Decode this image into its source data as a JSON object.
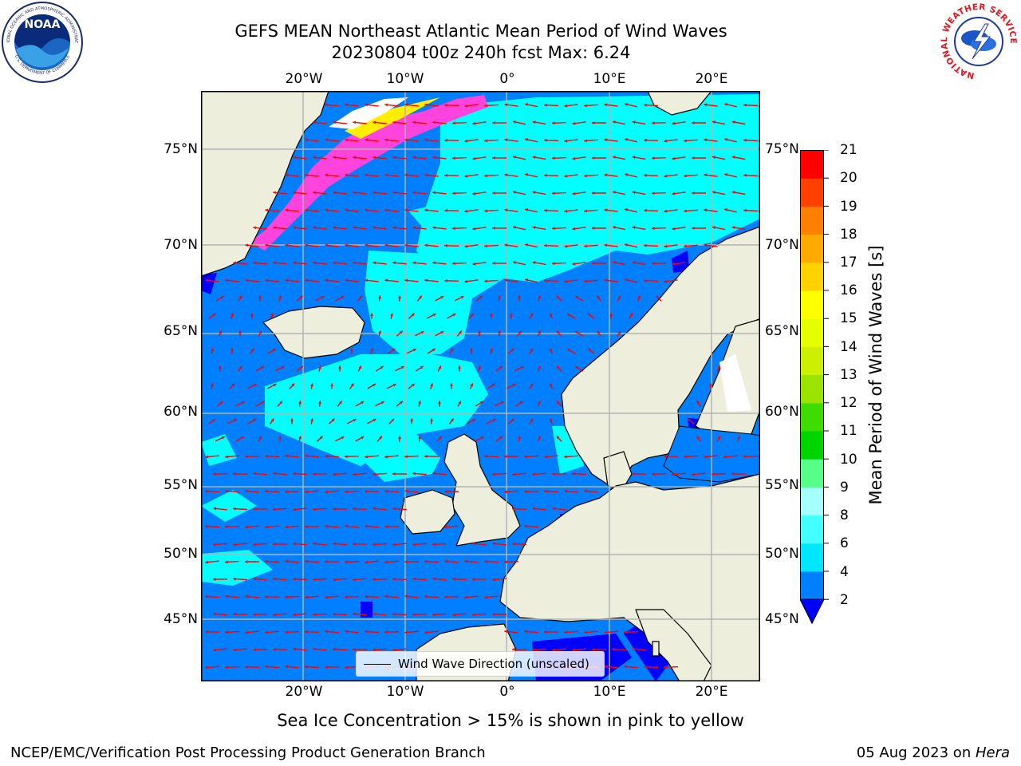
{
  "title": {
    "line1": "GEFS MEAN Northeast Atlantic Mean Period of Wind Waves",
    "line2": "20230804 t00z 240h fcst   Max: 6.24"
  },
  "axes": {
    "lon_labels": [
      "20°W",
      "10°W",
      "0°",
      "10°E",
      "20°E"
    ],
    "lat_labels": [
      "75°N",
      "70°N",
      "65°N",
      "60°N",
      "55°N",
      "50°N",
      "45°N"
    ]
  },
  "colorbar": {
    "title": "Mean Period of Wind Waves [s]",
    "ticks": [
      "2",
      "4",
      "6",
      "8",
      "9",
      "10",
      "11",
      "12",
      "13",
      "14",
      "15",
      "16",
      "17",
      "18",
      "19",
      "20",
      "21"
    ],
    "colors": [
      "#0080ff",
      "#00e6ff",
      "#44ffff",
      "#a6ffff",
      "#55ff88",
      "#00d500",
      "#3fdc00",
      "#9be300",
      "#ccf000",
      "#e6ff00",
      "#ffff00",
      "#ffd200",
      "#ffaa00",
      "#ff7f00",
      "#ff4000",
      "#ff0000"
    ],
    "extend_color": "#0000ff"
  },
  "legend": {
    "label": "Wind Wave Direction (unscaled)"
  },
  "map": {
    "colors": {
      "land": "#eeeedd",
      "ocean_low": "#0080ff",
      "ocean_mid": "#00ffff",
      "deep": "#0000ff",
      "ice_pink": "#ff44dd",
      "ice_yellow": "#ffee00",
      "arrow": "#ff0000",
      "grid": "#b3b3b3"
    }
  },
  "footer": {
    "ice_note": "Sea Ice Concentration > 15% is shown in pink to yellow",
    "credit": "NCEP/EMC/Verification Post Processing Product Generation Branch",
    "date_prefix": "05 Aug 2023 on ",
    "machine": "Hera"
  },
  "logos": {
    "noaa_text": "NOAA",
    "noaa_ring": "NATIONAL OCEANIC AND ATMOSPHERIC ADMINISTRATION",
    "noaa_ring_bottom": "U.S. DEPARTMENT OF COMMERCE",
    "nws_ring": "NATIONAL WEATHER SERVICE"
  }
}
